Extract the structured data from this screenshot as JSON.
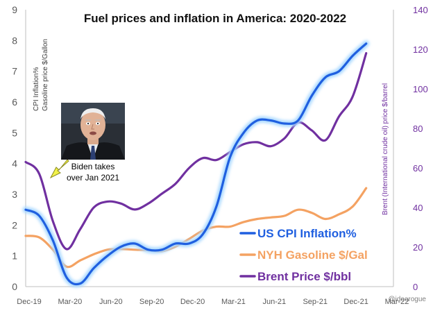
{
  "chart_data": {
    "type": "line",
    "title": "Fuel prices and inflation in America: 2020-2022",
    "left_axis_label_line1": "CPI Inflation%",
    "left_axis_label_line2": "Gasoline price $/Gallon",
    "right_axis_label": "Brent (International crude oil) price $/barrel",
    "ylim_left": [
      0,
      9
    ],
    "ylim_right": [
      0,
      140
    ],
    "y_ticks_left": [
      "0",
      "1",
      "2",
      "3",
      "4",
      "5",
      "6",
      "7",
      "8",
      "9"
    ],
    "y_ticks_right": [
      "0",
      "20",
      "40",
      "60",
      "80",
      "100",
      "120",
      "140"
    ],
    "x_ticks": [
      "Dec-19",
      "Mar-20",
      "Jun-20",
      "Sep-20",
      "Dec-20",
      "Mar-21",
      "Jun-21",
      "Sep-21",
      "Dec-21",
      "Mar-22"
    ],
    "series": [
      {
        "name": "US CPI Inflation%",
        "axis": "left",
        "color": "#1f5fe0",
        "glow": "#a8d8ff",
        "x": [
          0,
          1,
          2,
          3,
          4,
          5,
          6,
          7,
          8,
          9,
          10,
          11,
          12,
          13,
          14,
          15,
          16,
          17,
          18,
          19,
          20,
          21,
          22,
          23,
          24,
          25,
          26,
          27
        ],
        "values": [
          2.5,
          2.3,
          1.5,
          0.3,
          0.1,
          0.6,
          1.0,
          1.3,
          1.4,
          1.2,
          1.2,
          1.4,
          1.4,
          1.7,
          2.6,
          4.2,
          5.0,
          5.4,
          5.4,
          5.3,
          5.4,
          6.2,
          6.8,
          7.0,
          7.5,
          7.9,
          null,
          null
        ]
      },
      {
        "name": "NYH Gasoline $/Gal",
        "axis": "left",
        "color": "#f4a262",
        "x": [
          0,
          1,
          2,
          3,
          4,
          5,
          6,
          7,
          8,
          9,
          10,
          11,
          12,
          13,
          14,
          15,
          16,
          17,
          18,
          19,
          20,
          21,
          22,
          23,
          24,
          25,
          26,
          27
        ],
        "values": [
          1.65,
          1.6,
          1.2,
          0.65,
          0.85,
          1.05,
          1.2,
          1.22,
          1.2,
          1.18,
          1.15,
          1.3,
          1.55,
          1.82,
          1.95,
          1.95,
          2.1,
          2.2,
          2.25,
          2.3,
          2.5,
          2.4,
          2.2,
          2.35,
          2.6,
          3.2,
          null,
          null
        ]
      },
      {
        "name": "Brent Price $/bbl",
        "axis": "right",
        "color": "#7030a0",
        "x": [
          0,
          1,
          2,
          3,
          4,
          5,
          6,
          7,
          8,
          9,
          10,
          11,
          12,
          13,
          14,
          15,
          16,
          17,
          18,
          19,
          20,
          21,
          22,
          23,
          24,
          25,
          26,
          27
        ],
        "values": [
          63,
          57,
          33,
          19,
          29,
          40,
          43,
          42,
          39,
          42,
          47,
          52,
          60,
          65,
          64,
          68,
          72,
          73,
          71,
          75,
          83,
          79,
          74,
          86,
          96,
          118,
          null,
          null
        ]
      }
    ],
    "legend_location": "bottom-right"
  },
  "annotation": {
    "caption_line1": "Biden takes",
    "caption_line2": "over Jan 2021"
  },
  "watermark": "@ideorogue",
  "colors": {
    "axis_text": "#595959",
    "right_axis_text": "#7030a0",
    "arrow_fill": "#f2f24a",
    "arrow_stroke": "#8a8a20"
  },
  "icons": {
    "photo": "portrait-photo-icon",
    "arrow": "yellow-arrow-icon"
  }
}
